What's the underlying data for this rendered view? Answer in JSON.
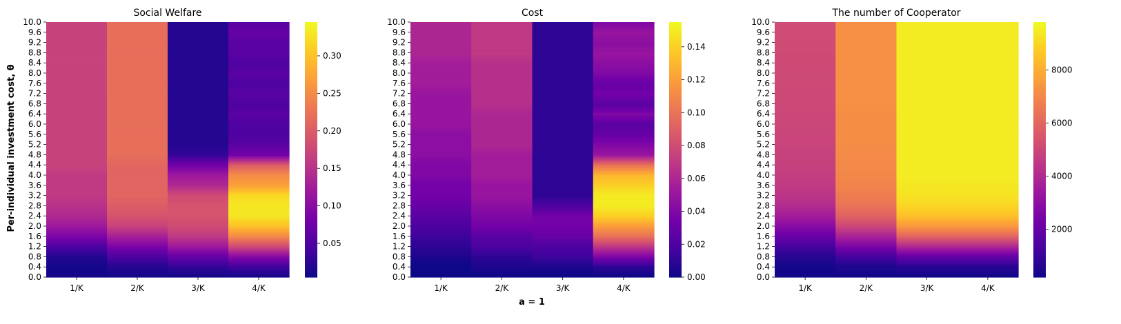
{
  "figure": {
    "ylabel": "Per-individual investment cost, θ",
    "xlabel": "a = 1"
  },
  "colormap": {
    "name": "plasma",
    "stops": [
      "#0d0887",
      "#46039f",
      "#7201a8",
      "#9c179e",
      "#bd3786",
      "#d8576b",
      "#ed7953",
      "#fb9f3a",
      "#fdca26",
      "#f0f921"
    ]
  },
  "chart_data": [
    {
      "type": "heatmap",
      "title": "Social Welfare",
      "x_categories": [
        "1/K",
        "2/K",
        "3/K",
        "4/K"
      ],
      "y_categories": [
        "0.0",
        "0.4",
        "0.8",
        "1.2",
        "1.6",
        "2.0",
        "2.4",
        "2.8",
        "3.2",
        "3.6",
        "4.0",
        "4.4",
        "4.8",
        "5.2",
        "5.6",
        "6.0",
        "6.4",
        "6.8",
        "7.2",
        "7.6",
        "8.0",
        "8.4",
        "8.8",
        "9.2",
        "9.6",
        "10.0"
      ],
      "colorbar": {
        "vmin": 0.005,
        "vmax": 0.345,
        "ticks": [
          0.05,
          0.1,
          0.15,
          0.2,
          0.25,
          0.3
        ],
        "tick_labels": [
          "0.05",
          "0.10",
          "0.15",
          "0.20",
          "0.25",
          "0.30"
        ]
      },
      "columns": [
        [
          0.01,
          0.01,
          0.02,
          0.05,
          0.09,
          0.12,
          0.14,
          0.15,
          0.16,
          0.16,
          0.16,
          0.17,
          0.17,
          0.17,
          0.17,
          0.17,
          0.17,
          0.17,
          0.17,
          0.17,
          0.17,
          0.17,
          0.17,
          0.17,
          0.17,
          0.17
        ],
        [
          0.01,
          0.02,
          0.05,
          0.09,
          0.13,
          0.17,
          0.19,
          0.2,
          0.21,
          0.21,
          0.21,
          0.21,
          0.22,
          0.22,
          0.22,
          0.22,
          0.22,
          0.22,
          0.22,
          0.22,
          0.22,
          0.22,
          0.22,
          0.22,
          0.22,
          0.22
        ],
        [
          0.01,
          0.03,
          0.07,
          0.12,
          0.16,
          0.18,
          0.19,
          0.19,
          0.18,
          0.14,
          0.12,
          0.08,
          0.03,
          0.02,
          0.02,
          0.02,
          0.02,
          0.02,
          0.02,
          0.02,
          0.02,
          0.02,
          0.02,
          0.02,
          0.02,
          0.02
        ],
        [
          0.01,
          0.04,
          0.1,
          0.18,
          0.25,
          0.3,
          0.33,
          0.33,
          0.32,
          0.27,
          0.25,
          0.2,
          0.08,
          0.06,
          0.05,
          0.05,
          0.06,
          0.05,
          0.06,
          0.05,
          0.06,
          0.05,
          0.06,
          0.06,
          0.07,
          0.06
        ]
      ]
    },
    {
      "type": "heatmap",
      "title": "Cost",
      "x_categories": [
        "1/K",
        "2/K",
        "3/K",
        "4/K"
      ],
      "y_categories": [
        "0.0",
        "0.4",
        "0.8",
        "1.2",
        "1.6",
        "2.0",
        "2.4",
        "2.8",
        "3.2",
        "3.6",
        "4.0",
        "4.4",
        "4.8",
        "5.2",
        "5.6",
        "6.0",
        "6.4",
        "6.8",
        "7.2",
        "7.6",
        "8.0",
        "8.4",
        "8.8",
        "9.2",
        "9.6",
        "10.0"
      ],
      "colorbar": {
        "vmin": 0.0,
        "vmax": 0.155,
        "ticks": [
          0,
          0.02,
          0.04,
          0.06,
          0.08,
          0.1,
          0.12,
          0.14
        ],
        "tick_labels": [
          "0.00",
          "0.02",
          "0.04",
          "0.06",
          "0.08",
          "0.10",
          "0.12",
          "0.14"
        ]
      },
      "columns": [
        [
          0.0,
          0.0,
          0.005,
          0.01,
          0.015,
          0.02,
          0.025,
          0.03,
          0.035,
          0.035,
          0.04,
          0.04,
          0.045,
          0.045,
          0.045,
          0.05,
          0.05,
          0.05,
          0.05,
          0.055,
          0.055,
          0.055,
          0.06,
          0.06,
          0.06,
          0.06
        ],
        [
          0.0,
          0.005,
          0.01,
          0.02,
          0.025,
          0.035,
          0.04,
          0.045,
          0.05,
          0.05,
          0.055,
          0.055,
          0.055,
          0.06,
          0.06,
          0.06,
          0.06,
          0.065,
          0.065,
          0.065,
          0.065,
          0.065,
          0.07,
          0.07,
          0.07,
          0.07
        ],
        [
          0.0,
          0.005,
          0.015,
          0.02,
          0.03,
          0.035,
          0.035,
          0.02,
          0.01,
          0.01,
          0.01,
          0.01,
          0.01,
          0.01,
          0.01,
          0.01,
          0.01,
          0.01,
          0.01,
          0.01,
          0.01,
          0.01,
          0.01,
          0.01,
          0.01,
          0.01
        ],
        [
          0.0,
          0.01,
          0.04,
          0.07,
          0.1,
          0.12,
          0.14,
          0.15,
          0.15,
          0.14,
          0.13,
          0.1,
          0.05,
          0.04,
          0.03,
          0.025,
          0.04,
          0.025,
          0.035,
          0.03,
          0.04,
          0.045,
          0.05,
          0.045,
          0.05,
          0.04
        ]
      ]
    },
    {
      "type": "heatmap",
      "title": "The number of Cooperator",
      "x_categories": [
        "1/K",
        "2/K",
        "3/K",
        "4/K"
      ],
      "y_categories": [
        "0.0",
        "0.4",
        "0.8",
        "1.2",
        "1.6",
        "2.0",
        "2.4",
        "2.8",
        "3.2",
        "3.6",
        "4.0",
        "4.4",
        "4.8",
        "5.2",
        "5.6",
        "6.0",
        "6.4",
        "6.8",
        "7.2",
        "7.6",
        "8.0",
        "8.4",
        "8.8",
        "9.2",
        "9.6",
        "10.0"
      ],
      "colorbar": {
        "vmin": 200,
        "vmax": 9800,
        "ticks": [
          2000,
          4000,
          6000,
          8000
        ],
        "tick_labels": [
          "2000",
          "4000",
          "6000",
          "8000"
        ]
      },
      "columns": [
        [
          300,
          350,
          700,
          1300,
          2100,
          2900,
          3600,
          4100,
          4400,
          4600,
          4700,
          4800,
          4850,
          4900,
          4950,
          5000,
          5000,
          5050,
          5050,
          5100,
          5100,
          5100,
          5150,
          5150,
          5150,
          5150
        ],
        [
          300,
          500,
          1300,
          2600,
          3800,
          5000,
          5900,
          6400,
          6700,
          6900,
          7000,
          7050,
          7100,
          7150,
          7200,
          7200,
          7200,
          7250,
          7250,
          7250,
          7250,
          7250,
          7250,
          7250,
          7250,
          7250
        ],
        [
          300,
          700,
          2000,
          4000,
          6000,
          7500,
          8500,
          9000,
          9300,
          9400,
          9500,
          9500,
          9500,
          9500,
          9500,
          9500,
          9500,
          9500,
          9500,
          9500,
          9500,
          9500,
          9500,
          9500,
          9500,
          9500
        ],
        [
          300,
          700,
          2000,
          4000,
          6000,
          7500,
          8500,
          9000,
          9300,
          9400,
          9500,
          9500,
          9500,
          9500,
          9500,
          9500,
          9500,
          9500,
          9500,
          9500,
          9500,
          9500,
          9500,
          9500,
          9500,
          9500
        ]
      ]
    }
  ]
}
